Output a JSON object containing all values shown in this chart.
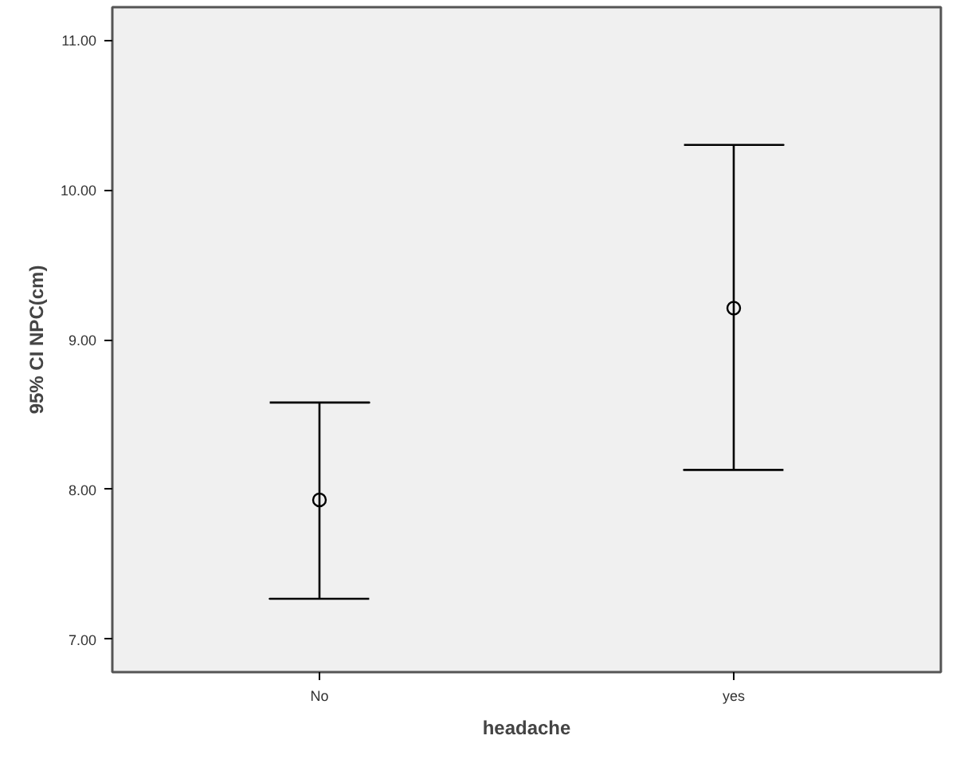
{
  "chart_data": {
    "type": "scatter",
    "xlabel": "headache",
    "ylabel": "95% CI NPC(cm)",
    "categories": [
      "No",
      "yes"
    ],
    "values": [
      7.93,
      9.21
    ],
    "errors": [
      [
        7.27,
        8.58
      ],
      [
        8.13,
        10.3
      ]
    ],
    "color": "#000000",
    "marker": "circle",
    "grid": false,
    "ylim": [
      6.78,
      11.22
    ],
    "yticks": [
      {
        "value": 7,
        "label": "7.00"
      },
      {
        "value": 8,
        "label": "8.00"
      },
      {
        "value": 9,
        "label": "9.00"
      },
      {
        "value": 10,
        "label": "10.00"
      },
      {
        "value": 11,
        "label": "11.00"
      }
    ]
  }
}
